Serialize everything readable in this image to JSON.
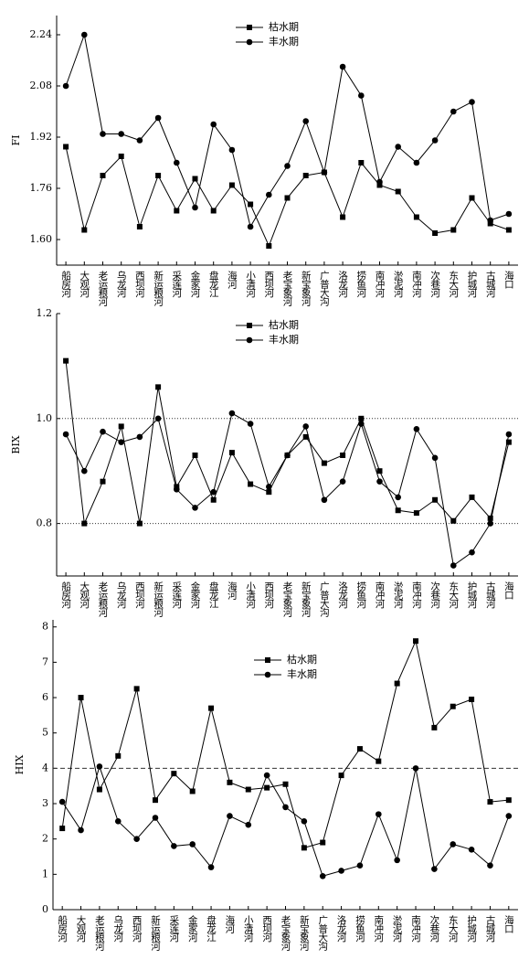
{
  "chart_data": [
    {
      "type": "line",
      "y_label": "FI",
      "categories": [
        "船房河",
        "大观河",
        "老运粮河",
        "乌龙河",
        "西坝河",
        "新运粮河",
        "采莲河",
        "金家河",
        "盘龙江",
        "海河",
        "小清河",
        "西坝河",
        "老宝象河",
        "新宝象河",
        "广普大沟",
        "洛龙河",
        "捞鱼河",
        "南冲河",
        "淤泥河",
        "南冲河",
        "次巷河",
        "东大河",
        "护城河",
        "古城河",
        "海口"
      ],
      "series": [
        {
          "name": "枯水期",
          "color": "#000000",
          "marker": "square",
          "values": [
            1.89,
            1.63,
            1.8,
            1.86,
            1.64,
            1.8,
            1.69,
            1.79,
            1.69,
            1.77,
            1.71,
            1.58,
            1.73,
            1.8,
            1.81,
            1.67,
            1.84,
            1.77,
            1.75,
            1.67,
            1.62,
            1.63,
            1.73,
            1.65,
            1.63
          ]
        },
        {
          "name": "丰水期",
          "color": "#000000",
          "marker": "circle",
          "values": [
            2.08,
            2.24,
            1.93,
            1.93,
            1.91,
            1.98,
            1.84,
            1.7,
            1.96,
            1.88,
            1.64,
            1.74,
            1.83,
            1.97,
            1.81,
            2.14,
            2.05,
            1.78,
            1.89,
            1.84,
            1.91,
            2.0,
            2.03,
            1.66,
            1.68
          ]
        }
      ],
      "ylim": [
        1.52,
        2.3
      ],
      "yticks": [
        {
          "value": 1.6,
          "label": "1.60"
        },
        {
          "value": 1.76,
          "label": "1.76"
        },
        {
          "value": 1.92,
          "label": "1.92"
        },
        {
          "value": 2.08,
          "label": "2.08"
        },
        {
          "value": 2.24,
          "label": "2.24"
        }
      ],
      "grid": false
    },
    {
      "type": "line",
      "y_label": "BIX",
      "categories": [
        "船房河",
        "大观河",
        "老运粮河",
        "乌龙河",
        "西坝河",
        "新运粮河",
        "采莲河",
        "金家河",
        "盘龙江",
        "海河",
        "小清河",
        "西坝河",
        "老宝象河",
        "新宝象河",
        "广普大沟",
        "洛龙河",
        "捞鱼河",
        "南冲河",
        "淤泥河",
        "南冲河",
        "次巷河",
        "东大河",
        "护城河",
        "古城河",
        "海口"
      ],
      "series": [
        {
          "name": "枯水期",
          "color": "#000000",
          "marker": "square",
          "values": [
            1.11,
            0.8,
            0.88,
            0.985,
            0.8,
            1.06,
            0.87,
            0.93,
            0.845,
            0.935,
            0.875,
            0.86,
            0.93,
            0.965,
            0.915,
            0.93,
            1.0,
            0.9,
            0.825,
            0.82,
            0.845,
            0.805,
            0.85,
            0.81,
            0.955
          ]
        },
        {
          "name": "丰水期",
          "color": "#000000",
          "marker": "circle",
          "values": [
            0.97,
            0.9,
            0.975,
            0.955,
            0.965,
            1.0,
            0.865,
            0.83,
            0.86,
            1.01,
            0.99,
            0.87,
            0.93,
            0.985,
            0.845,
            0.88,
            0.99,
            0.88,
            0.85,
            0.98,
            0.925,
            0.72,
            0.745,
            0.8,
            0.97
          ]
        }
      ],
      "ylim": [
        0.7,
        1.2
      ],
      "yticks": [
        {
          "value": 0.8,
          "label": "0.8"
        },
        {
          "value": 1.0,
          "label": "1.0"
        },
        {
          "value": 1.2,
          "label": "1.2"
        }
      ],
      "reference_lines": [
        1.0,
        0.8
      ],
      "reference_style": "dotted",
      "grid": false
    },
    {
      "type": "line",
      "y_label": "HIX",
      "categories": [
        "船房河",
        "大观河",
        "老运粮河",
        "乌龙河",
        "西坝河",
        "新运粮河",
        "采莲河",
        "金家河",
        "盘龙江",
        "海河",
        "小清河",
        "西坝河",
        "老宝象河",
        "新宝象河",
        "广普大沟",
        "洛龙河",
        "捞鱼河",
        "南冲河",
        "淤泥河",
        "南冲河",
        "次巷河",
        "东大河",
        "护城河",
        "古城河",
        "海口"
      ],
      "series": [
        {
          "name": "枯水期",
          "color": "#000000",
          "marker": "square",
          "values": [
            2.3,
            6.0,
            3.4,
            4.35,
            6.25,
            3.1,
            3.85,
            3.35,
            5.7,
            3.6,
            3.4,
            3.45,
            3.55,
            1.75,
            1.9,
            3.8,
            4.55,
            4.2,
            6.4,
            7.6,
            5.15,
            5.75,
            5.95,
            3.05,
            3.1
          ]
        },
        {
          "name": "丰水期",
          "color": "#000000",
          "marker": "circle",
          "values": [
            3.05,
            2.25,
            4.05,
            2.5,
            2.0,
            2.6,
            1.8,
            1.85,
            1.2,
            2.65,
            2.4,
            3.8,
            2.9,
            2.5,
            0.95,
            1.1,
            1.25,
            2.7,
            1.4,
            4.0,
            1.15,
            1.85,
            1.7,
            1.25,
            2.65
          ]
        }
      ],
      "ylim": [
        0,
        8.2
      ],
      "yticks": [
        0,
        1,
        2,
        3,
        4,
        5,
        6,
        7,
        8
      ],
      "reference_lines": [
        4
      ],
      "reference_style": "dashed",
      "grid": false
    }
  ]
}
